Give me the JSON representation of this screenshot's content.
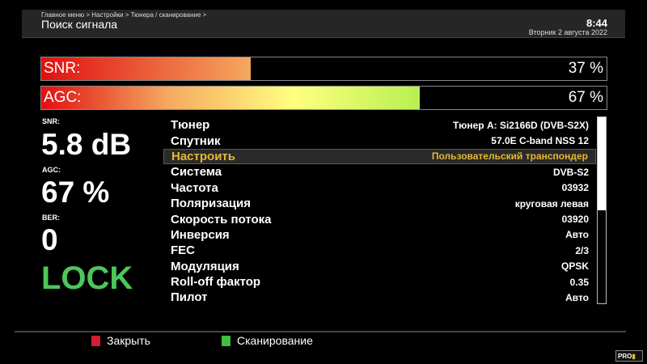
{
  "header": {
    "breadcrumb": "Главное меню > Настройки > Тюнера / сканирование >",
    "title": "Поиск сигнала",
    "time": "8:44",
    "date": "Вторник  2 августа 2022"
  },
  "bars": [
    {
      "label": "SNR:",
      "value_text": "37 %",
      "percent": 37,
      "gradient": [
        "#e01010",
        "#f5a860"
      ]
    },
    {
      "label": "AGC:",
      "value_text": "67 %",
      "percent": 67,
      "gradient": [
        "#e01010",
        "#f5a860",
        "#ffff80",
        "#b8f050"
      ]
    }
  ],
  "stats": {
    "snr_label": "SNR:",
    "snr_value": "5.8 dB",
    "agc_label": "AGC:",
    "agc_value": "67 %",
    "ber_label": "BER:",
    "ber_value": "0",
    "lock": "LOCK"
  },
  "settings": [
    {
      "key": "Тюнер",
      "value": "Тюнер A: Si2166D (DVB-S2X)"
    },
    {
      "key": "Спутник",
      "value": "57.0E C-band NSS 12"
    },
    {
      "key": "Настроить",
      "value": "Пользовательский транспондер",
      "selected": true
    },
    {
      "key": "Система",
      "value": "DVB-S2"
    },
    {
      "key": "Частота",
      "value": "03932"
    },
    {
      "key": "Поляризация",
      "value": "круговая левая"
    },
    {
      "key": "Скорость потока",
      "value": "03920"
    },
    {
      "key": "Инверсия",
      "value": "Авто"
    },
    {
      "key": "FEC",
      "value": "2/3"
    },
    {
      "key": "Модуляция",
      "value": "QPSK"
    },
    {
      "key": "Roll-off фактор",
      "value": "0.35"
    },
    {
      "key": "Пилот",
      "value": "Авто"
    }
  ],
  "footer": {
    "close_label": "Закрыть",
    "close_color": "#d02030",
    "scan_label": "Сканирование",
    "scan_color": "#40c040",
    "logo": "PRO TV"
  },
  "colors": {
    "selected_text": "#e6b830",
    "lock": "#4cc65a"
  }
}
